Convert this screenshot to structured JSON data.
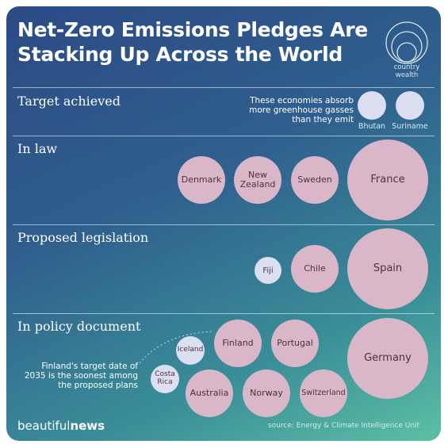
{
  "title": {
    "line1": "Net-Zero Emissions Pledges Are",
    "line2": "Stacking Up Across the World"
  },
  "logo": {
    "line1": "country",
    "line2": "wealth",
    "icon": "concentric-circles-icon"
  },
  "categories": {
    "target_achieved": "Target achieved",
    "in_law": "In law",
    "proposed_legislation": "Proposed legislation",
    "in_policy_document": "In policy document"
  },
  "notes": {
    "absorb_line1": "These economies absorb",
    "absorb_line2": "more greenhouse gasses",
    "absorb_line3": "than they emit",
    "finland_line1": "Finland's target date of",
    "finland_line2": "2035 is the soonest among",
    "finland_line3": "the proposed plans"
  },
  "footer": {
    "brand_light": "beautiful",
    "brand_bold": "news",
    "source": "source: Energy & Climate Intelligence Unit"
  },
  "colors": {
    "bubble_pink": "#d9b6c8",
    "bubble_lavender": "#dcdff2",
    "text_dark": "#4a3340"
  },
  "chart_data": {
    "type": "bubble",
    "title": "Net-Zero Emissions Pledges Are Stacking Up Across the World",
    "series": [
      {
        "name": "Target achieved",
        "values": [
          {
            "country": "Bhutan",
            "size": "small"
          },
          {
            "country": "Suriname",
            "size": "small"
          }
        ]
      },
      {
        "name": "In law",
        "values": [
          {
            "country": "Denmark",
            "size": "medium"
          },
          {
            "country": "New Zealand",
            "size": "medium"
          },
          {
            "country": "Sweden",
            "size": "medium"
          },
          {
            "country": "France",
            "size": "large"
          }
        ]
      },
      {
        "name": "Proposed legislation",
        "values": [
          {
            "country": "Fiji",
            "size": "small"
          },
          {
            "country": "Chile",
            "size": "medium"
          },
          {
            "country": "Spain",
            "size": "large"
          }
        ]
      },
      {
        "name": "In policy document",
        "values": [
          {
            "country": "Iceland",
            "size": "small"
          },
          {
            "country": "Costa Rica",
            "size": "small"
          },
          {
            "country": "Finland",
            "size": "medium"
          },
          {
            "country": "Portugal",
            "size": "medium"
          },
          {
            "country": "Australia",
            "size": "medium"
          },
          {
            "country": "Norway",
            "size": "medium"
          },
          {
            "country": "Switzerland",
            "size": "medium"
          },
          {
            "country": "Germany",
            "size": "large"
          }
        ]
      }
    ]
  }
}
